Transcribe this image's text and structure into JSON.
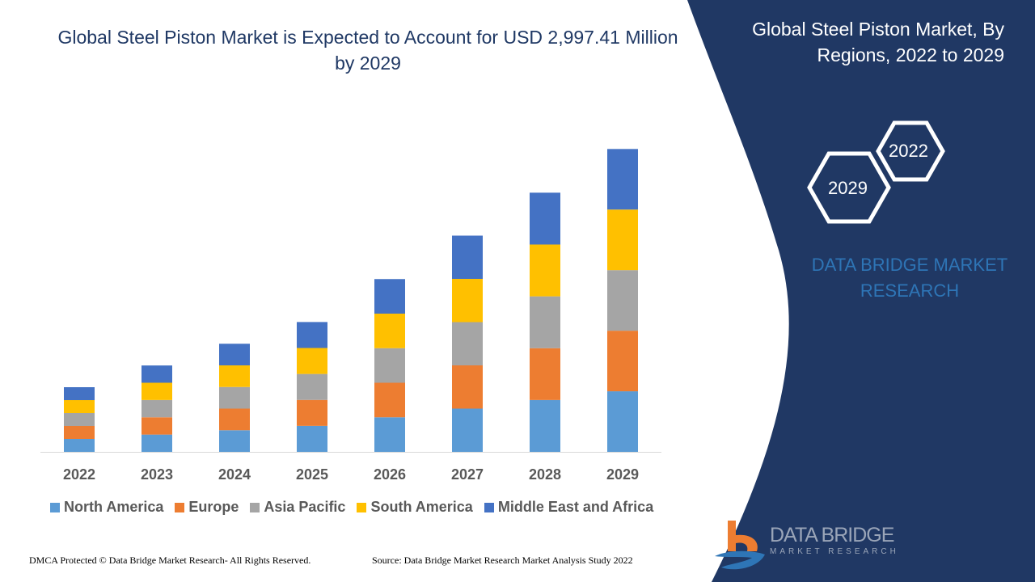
{
  "header": {
    "title": "Global Steel Piston Market is Expected to Account for USD 2,997.41 Million by 2029",
    "side_title": "Global Steel Piston Market, By Regions, 2022 to 2029",
    "hex_years": [
      "2022",
      "2029"
    ],
    "brand": "DATA BRIDGE MARKET RESEARCH"
  },
  "footer": {
    "copyright": "DMCA Protected © Data Bridge Market Research- All Rights Reserved.",
    "source": "Source: Data Bridge Market Research Market Analysis Study 2022",
    "logo_text": "DATA BRIDGE",
    "logo_sub": "MARKET RESEARCH"
  },
  "colors": {
    "panel": "#203864",
    "title": "#1f3864"
  },
  "chart_data": {
    "type": "bar",
    "stacked": true,
    "title": "Global Steel Piston Market is Expected to Account for USD 2,997.41 Million by 2029",
    "xlabel": "",
    "ylabel": "",
    "categories": [
      "2022",
      "2023",
      "2024",
      "2025",
      "2026",
      "2027",
      "2028",
      "2029"
    ],
    "ylim": [
      0,
      3200
    ],
    "grid": false,
    "legend_position": "bottom",
    "series": [
      {
        "name": "North America",
        "color": "#5b9bd5",
        "values": [
          128,
          171,
          214,
          257,
          342,
          428,
          513,
          599.5
        ]
      },
      {
        "name": "Europe",
        "color": "#ed7d31",
        "values": [
          128,
          171,
          214,
          257,
          342,
          428,
          513,
          599.5
        ]
      },
      {
        "name": "Asia Pacific",
        "color": "#a5a5a5",
        "values": [
          128,
          171,
          214,
          257,
          342,
          428,
          513,
          599.5
        ]
      },
      {
        "name": "South America",
        "color": "#ffc000",
        "values": [
          128,
          171,
          214,
          257,
          342,
          428,
          513,
          599.5
        ]
      },
      {
        "name": "Middle East and Africa",
        "color": "#4472c4",
        "values": [
          128,
          171,
          214,
          257,
          342,
          428,
          513,
          599.5
        ]
      }
    ]
  }
}
